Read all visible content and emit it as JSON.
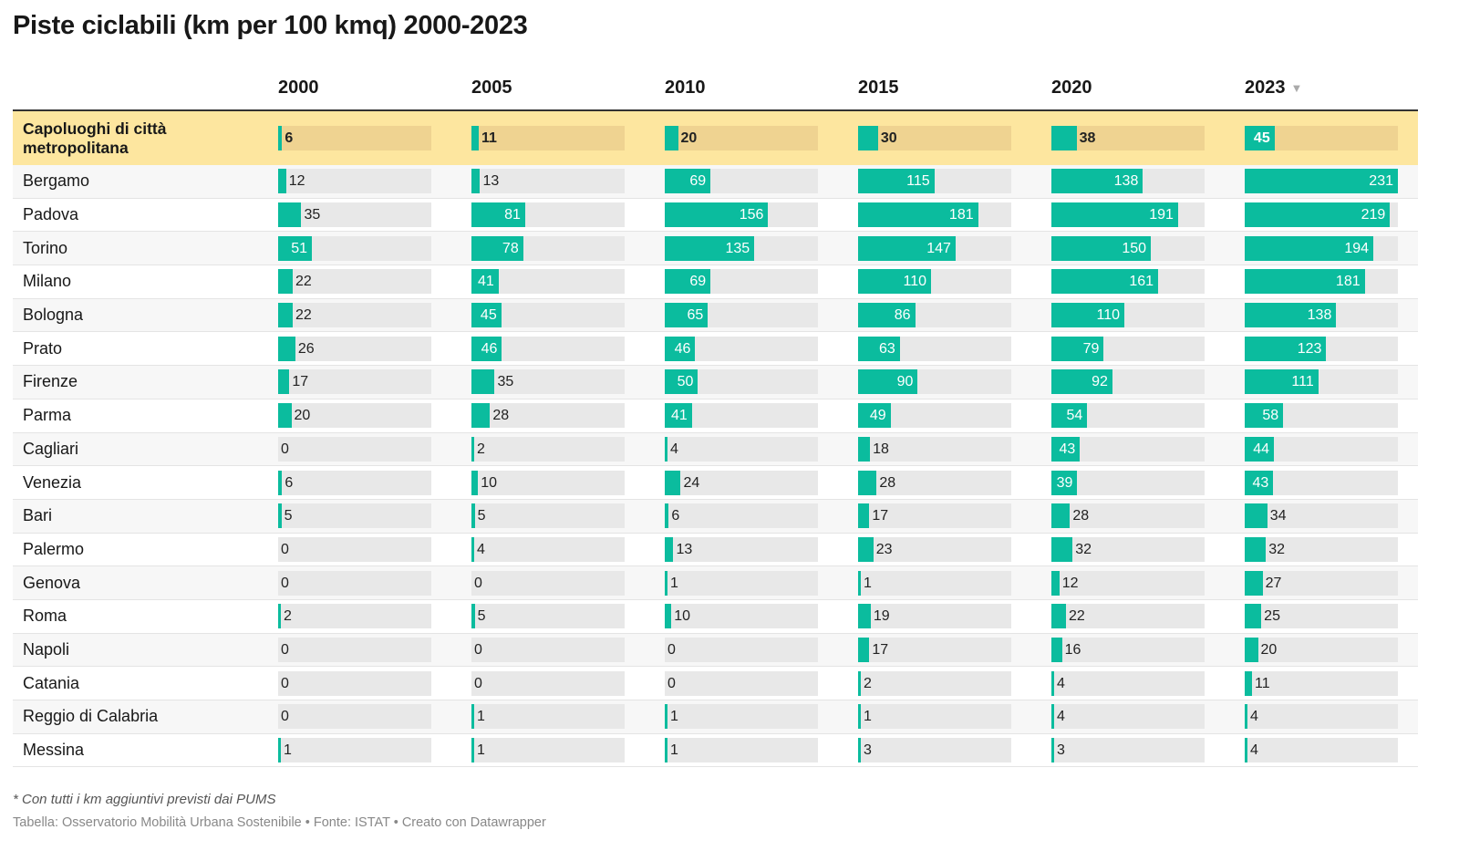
{
  "title": "Piste ciclabili (km per 100 kmq) 2000-2023",
  "notes": "* Con tutti i km aggiuntivi previsti dai PUMS",
  "footer": "Tabella: Osservatorio Mobilità Urbana Sostenibile • Fonte: ISTAT • Creato con Datawrapper",
  "icons": {
    "sort": "sort-down-icon"
  },
  "colors": {
    "bar": "#0bbc9e",
    "highlight_row": "#fde69f",
    "track": "#e8e8e8"
  },
  "chart_data": {
    "type": "table",
    "title": "Piste ciclabili (km per 100 kmq) 2000-2023",
    "sorted_by": "2023",
    "sort_order": "descending",
    "xlim": [
      0,
      231
    ],
    "columns": [
      "2000",
      "2005",
      "2010",
      "2015",
      "2020",
      "2023"
    ],
    "rows": [
      {
        "name": "Capoluoghi di città metropolitana",
        "highlight": true,
        "values": [
          6,
          11,
          20,
          30,
          38,
          45
        ]
      },
      {
        "name": "Bergamo",
        "values": [
          12,
          13,
          69,
          115,
          138,
          231
        ]
      },
      {
        "name": "Padova",
        "values": [
          35,
          81,
          156,
          181,
          191,
          219
        ]
      },
      {
        "name": "Torino",
        "values": [
          51,
          78,
          135,
          147,
          150,
          194
        ]
      },
      {
        "name": "Milano",
        "values": [
          22,
          41,
          69,
          110,
          161,
          181
        ]
      },
      {
        "name": "Bologna",
        "values": [
          22,
          45,
          65,
          86,
          110,
          138
        ]
      },
      {
        "name": "Prato",
        "values": [
          26,
          46,
          46,
          63,
          79,
          123
        ]
      },
      {
        "name": "Firenze",
        "values": [
          17,
          35,
          50,
          90,
          92,
          111
        ]
      },
      {
        "name": "Parma",
        "values": [
          20,
          28,
          41,
          49,
          54,
          58
        ]
      },
      {
        "name": "Cagliari",
        "values": [
          0,
          2,
          4,
          18,
          43,
          44
        ]
      },
      {
        "name": "Venezia",
        "values": [
          6,
          10,
          24,
          28,
          39,
          43
        ]
      },
      {
        "name": "Bari",
        "values": [
          5,
          5,
          6,
          17,
          28,
          34
        ]
      },
      {
        "name": "Palermo",
        "values": [
          0,
          4,
          13,
          23,
          32,
          32
        ]
      },
      {
        "name": "Genova",
        "values": [
          0,
          0,
          1,
          1,
          12,
          27
        ]
      },
      {
        "name": "Roma",
        "values": [
          2,
          5,
          10,
          19,
          22,
          25
        ]
      },
      {
        "name": "Napoli",
        "values": [
          0,
          0,
          0,
          17,
          16,
          20
        ]
      },
      {
        "name": "Catania",
        "values": [
          0,
          0,
          0,
          2,
          4,
          11
        ]
      },
      {
        "name": "Reggio di Calabria",
        "values": [
          0,
          1,
          1,
          1,
          4,
          4
        ]
      },
      {
        "name": "Messina",
        "values": [
          1,
          1,
          1,
          3,
          3,
          4
        ]
      }
    ]
  }
}
